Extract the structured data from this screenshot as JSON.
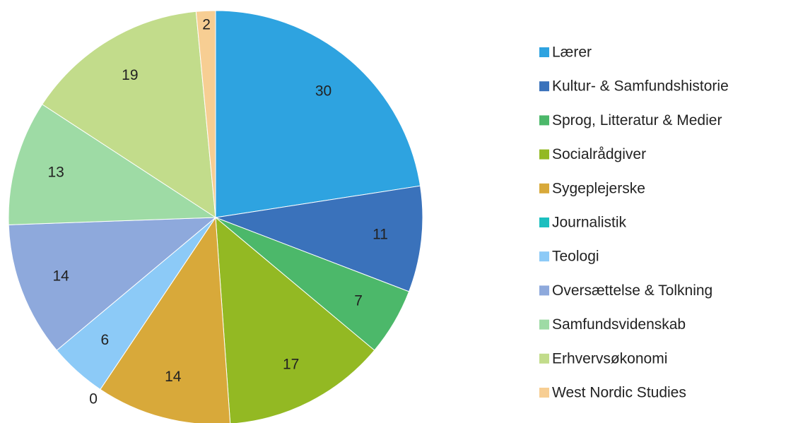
{
  "chart_data": {
    "type": "pie",
    "categories": [
      "Lærer",
      "Kultur- & Samfundshistorie",
      "Sprog, Litteratur & Medier",
      "Socialrådgiver",
      "Sygeplejerske",
      "Journalistik",
      "Teologi",
      "Oversættelse & Tolkning",
      "Samfundsvidenskab",
      "Erhvervsøkonomi",
      "West Nordic Studies"
    ],
    "values": [
      30,
      11,
      7,
      17,
      14,
      0,
      6,
      14,
      13,
      19,
      2
    ],
    "colors": [
      "#2ea3e0",
      "#3a72bb",
      "#4cb86a",
      "#93b923",
      "#d8a93a",
      "#1cbfbf",
      "#8ccaf7",
      "#8ea9dc",
      "#9edba5",
      "#c2dc8b",
      "#f7ce93"
    ],
    "legend": "right"
  }
}
